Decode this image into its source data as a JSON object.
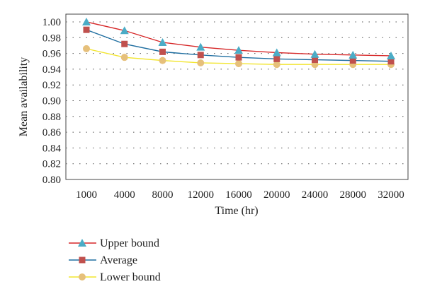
{
  "chart_data": {
    "type": "line",
    "xlabel": "Time (hr)",
    "ylabel": "Mean availability",
    "categories": [
      "1000",
      "4000",
      "8000",
      "12000",
      "16000",
      "20000",
      "24000",
      "28000",
      "32000"
    ],
    "ylim": [
      0.8,
      1.0
    ],
    "yticks": [
      "0.80",
      "0.82",
      "0.84",
      "0.86",
      "0.88",
      "0.90",
      "0.92",
      "0.94",
      "0.96",
      "0.98",
      "1.00"
    ],
    "grid": "horizontal dotted",
    "legend_position": "below",
    "series": [
      {
        "name": "Upper bound",
        "color": "#d62728",
        "marker": "triangle",
        "marker_color": "#4bacc6",
        "values": [
          1.0,
          0.989,
          0.974,
          0.968,
          0.964,
          0.961,
          0.959,
          0.958,
          0.957
        ]
      },
      {
        "name": "Average",
        "color": "#1f6ea0",
        "marker": "square",
        "marker_color": "#c0504d",
        "values": [
          0.99,
          0.972,
          0.962,
          0.958,
          0.955,
          0.953,
          0.952,
          0.951,
          0.95
        ]
      },
      {
        "name": "Lower bound",
        "color": "#f2e52e",
        "marker": "circle",
        "marker_color": "#e6c07b",
        "values": [
          0.966,
          0.955,
          0.951,
          0.948,
          0.947,
          0.946,
          0.946,
          0.946,
          0.946
        ]
      }
    ]
  }
}
